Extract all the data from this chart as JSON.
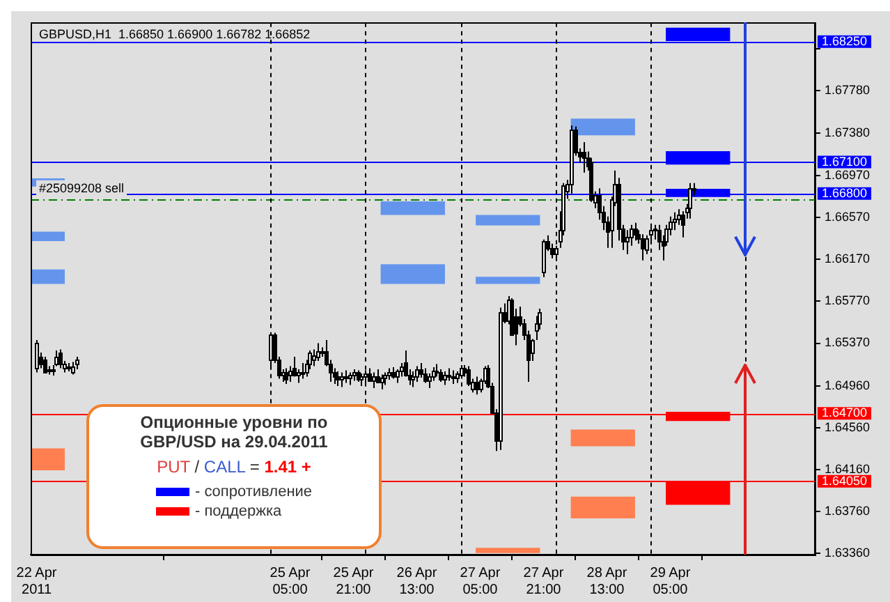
{
  "chart_data": {
    "type": "candlestick",
    "title": "Опционные уровни по GBP/USD на 29.04.2011",
    "subtitle": "GBPUSD,H1  1.66850 1.66900 1.66782 1.66852",
    "annotations": [
      "PUT / CALL = 1.41 +"
    ],
    "legend": "bottom left",
    "x": [
      "2011-04-22T13:00",
      "2011-04-22T14:00",
      "2011-04-22T15:00",
      "2011-04-22T16:00",
      "2011-04-22T17:00",
      "2011-04-22T18:00",
      "2011-04-22T19:00",
      "2011-04-22T20:00",
      "2011-04-22T21:00",
      "2011-04-22T22:00",
      "2011-04-22T23:00",
      "2011-04-25T00:00",
      "2011-04-25T01:00",
      "2011-04-25T02:00",
      "2011-04-25T03:00",
      "2011-04-25T04:00",
      "2011-04-25T05:00",
      "2011-04-25T06:00",
      "2011-04-25T07:00",
      "2011-04-25T08:00",
      "2011-04-25T09:00",
      "2011-04-25T10:00",
      "2011-04-25T11:00",
      "2011-04-25T12:00",
      "2011-04-25T13:00",
      "2011-04-25T14:00",
      "2011-04-25T15:00",
      "2011-04-25T16:00",
      "2011-04-25T17:00",
      "2011-04-25T18:00",
      "2011-04-25T19:00",
      "2011-04-25T20:00",
      "2011-04-25T21:00",
      "2011-04-25T22:00",
      "2011-04-25T23:00",
      "2011-04-26T00:00",
      "2011-04-26T01:00",
      "2011-04-26T02:00",
      "2011-04-26T03:00",
      "2011-04-26T04:00",
      "2011-04-26T05:00",
      "2011-04-26T06:00",
      "2011-04-26T07:00",
      "2011-04-26T08:00",
      "2011-04-26T09:00",
      "2011-04-26T10:00",
      "2011-04-26T11:00",
      "2011-04-26T12:00",
      "2011-04-26T13:00",
      "2011-04-26T14:00",
      "2011-04-26T15:00",
      "2011-04-26T16:00",
      "2011-04-26T17:00",
      "2011-04-26T18:00",
      "2011-04-26T19:00",
      "2011-04-26T20:00",
      "2011-04-26T21:00",
      "2011-04-26T22:00",
      "2011-04-26T23:00",
      "2011-04-27T00:00",
      "2011-04-27T01:00",
      "2011-04-27T02:00",
      "2011-04-27T03:00",
      "2011-04-27T04:00",
      "2011-04-27T05:00",
      "2011-04-27T06:00",
      "2011-04-27T07:00",
      "2011-04-27T08:00",
      "2011-04-27T09:00",
      "2011-04-27T10:00",
      "2011-04-27T11:00",
      "2011-04-27T12:00",
      "2011-04-27T13:00",
      "2011-04-27T14:00",
      "2011-04-27T15:00",
      "2011-04-27T16:00",
      "2011-04-27T17:00",
      "2011-04-27T18:00",
      "2011-04-27T19:00",
      "2011-04-27T20:00",
      "2011-04-27T21:00",
      "2011-04-27T22:00",
      "2011-04-27T23:00",
      "2011-04-28T00:00",
      "2011-04-28T01:00",
      "2011-04-28T02:00",
      "2011-04-28T03:00",
      "2011-04-28T04:00",
      "2011-04-28T05:00",
      "2011-04-28T06:00",
      "2011-04-28T07:00",
      "2011-04-28T08:00",
      "2011-04-28T09:00",
      "2011-04-28T10:00",
      "2011-04-28T11:00",
      "2011-04-28T12:00",
      "2011-04-28T13:00",
      "2011-04-28T14:00",
      "2011-04-28T15:00",
      "2011-04-28T16:00",
      "2011-04-28T17:00",
      "2011-04-28T18:00",
      "2011-04-28T19:00",
      "2011-04-28T20:00",
      "2011-04-28T21:00",
      "2011-04-28T22:00",
      "2011-04-28T23:00",
      "2011-04-29T00:00",
      "2011-04-29T01:00",
      "2011-04-29T02:00",
      "2011-04-29T03:00",
      "2011-04-29T04:00",
      "2011-04-29T05:00",
      "2011-04-29T06:00",
      "2011-04-29T07:00",
      "2011-04-29T08:00",
      "2011-04-29T09:00",
      "2011-04-29T10:00",
      "2011-04-29T11:00"
    ],
    "ohlc": [
      [
        1.6513,
        1.654,
        1.6509,
        1.6537
      ],
      [
        1.6524,
        1.6528,
        1.6513,
        1.6518
      ],
      [
        1.6521,
        1.6524,
        1.6509,
        1.6509
      ],
      [
        1.6512,
        1.6515,
        1.6507,
        1.6511
      ],
      [
        1.6511,
        1.6516,
        1.6506,
        1.6512
      ],
      [
        1.6518,
        1.653,
        1.6515,
        1.6524
      ],
      [
        1.6528,
        1.6531,
        1.6513,
        1.6518
      ],
      [
        1.6513,
        1.652,
        1.6509,
        1.6517
      ],
      [
        1.6515,
        1.6518,
        1.651,
        1.6514
      ],
      [
        1.651,
        1.6519,
        1.6507,
        1.6515
      ],
      [
        1.6518,
        1.6524,
        1.6512,
        1.6521
      ],
      [
        1.6521,
        1.6547,
        1.6515,
        1.6545
      ],
      [
        1.6545,
        1.6547,
        1.6518,
        1.6521
      ],
      [
        1.6521,
        1.6524,
        1.6503,
        1.6507
      ],
      [
        1.6507,
        1.6512,
        1.65,
        1.6509
      ],
      [
        1.6509,
        1.6513,
        1.6498,
        1.6503
      ],
      [
        1.6507,
        1.6515,
        1.65,
        1.6511
      ],
      [
        1.6513,
        1.6524,
        1.6505,
        1.6507
      ],
      [
        1.6507,
        1.6512,
        1.6499,
        1.6509
      ],
      [
        1.6509,
        1.6518,
        1.6503,
        1.651
      ],
      [
        1.651,
        1.6521,
        1.6505,
        1.6518
      ],
      [
        1.6518,
        1.653,
        1.6512,
        1.6528
      ],
      [
        1.6521,
        1.6531,
        1.6515,
        1.6526
      ],
      [
        1.6524,
        1.6537,
        1.652,
        1.653
      ],
      [
        1.653,
        1.6533,
        1.6524,
        1.6528
      ],
      [
        1.653,
        1.654,
        1.6515,
        1.6518
      ],
      [
        1.6518,
        1.6521,
        1.65,
        1.6509
      ],
      [
        1.6509,
        1.6513,
        1.6498,
        1.6505
      ],
      [
        1.6505,
        1.651,
        1.6496,
        1.6503
      ],
      [
        1.6503,
        1.6509,
        1.6495,
        1.6506
      ],
      [
        1.6506,
        1.6511,
        1.6499,
        1.6504
      ],
      [
        1.6504,
        1.6509,
        1.6497,
        1.6507
      ],
      [
        1.6507,
        1.6512,
        1.6501,
        1.6509
      ],
      [
        1.6509,
        1.6511,
        1.65,
        1.6503
      ],
      [
        1.6503,
        1.6508,
        1.6496,
        1.6505
      ],
      [
        1.6505,
        1.6511,
        1.6498,
        1.6508
      ],
      [
        1.6508,
        1.6513,
        1.65,
        1.6502
      ],
      [
        1.6502,
        1.6509,
        1.6494,
        1.6506
      ],
      [
        1.6506,
        1.6512,
        1.6499,
        1.65
      ],
      [
        1.65,
        1.6507,
        1.6493,
        1.6504
      ],
      [
        1.6504,
        1.6509,
        1.6497,
        1.6507
      ],
      [
        1.6507,
        1.6513,
        1.6502,
        1.651
      ],
      [
        1.651,
        1.6514,
        1.6503,
        1.6505
      ],
      [
        1.6505,
        1.6512,
        1.6499,
        1.6511
      ],
      [
        1.6511,
        1.6518,
        1.6505,
        1.6515
      ],
      [
        1.6519,
        1.653,
        1.6505,
        1.6507
      ],
      [
        1.6507,
        1.6512,
        1.6497,
        1.6503
      ],
      [
        1.6503,
        1.651,
        1.6495,
        1.6506
      ],
      [
        1.6506,
        1.6515,
        1.65,
        1.6512
      ],
      [
        1.6512,
        1.6518,
        1.6504,
        1.6508
      ],
      [
        1.6508,
        1.6513,
        1.6499,
        1.6502
      ],
      [
        1.6502,
        1.6508,
        1.6494,
        1.6505
      ],
      [
        1.6505,
        1.6514,
        1.6501,
        1.6511
      ],
      [
        1.6511,
        1.6517,
        1.6505,
        1.6509
      ],
      [
        1.6509,
        1.6512,
        1.65,
        1.6503
      ],
      [
        1.6503,
        1.651,
        1.6497,
        1.6507
      ],
      [
        1.6507,
        1.6513,
        1.6501,
        1.6506
      ],
      [
        1.6506,
        1.6511,
        1.6498,
        1.6504
      ],
      [
        1.6504,
        1.651,
        1.6499,
        1.6508
      ],
      [
        1.6507,
        1.6516,
        1.6503,
        1.6513
      ],
      [
        1.6513,
        1.6516,
        1.6505,
        1.6509
      ],
      [
        1.6512,
        1.6515,
        1.6496,
        1.6499
      ],
      [
        1.6494,
        1.6503,
        1.649,
        1.65
      ],
      [
        1.65,
        1.6505,
        1.6488,
        1.6494
      ],
      [
        1.6494,
        1.6503,
        1.649,
        1.6501
      ],
      [
        1.6501,
        1.6515,
        1.6498,
        1.6513
      ],
      [
        1.6513,
        1.6516,
        1.6494,
        1.6496
      ],
      [
        1.6496,
        1.6499,
        1.647,
        1.6471
      ],
      [
        1.6471,
        1.6474,
        1.6434,
        1.6444
      ],
      [
        1.6444,
        1.6571,
        1.6435,
        1.6566
      ],
      [
        1.6566,
        1.6575,
        1.6556,
        1.6559
      ],
      [
        1.6559,
        1.6582,
        1.6555,
        1.6578
      ],
      [
        1.6578,
        1.658,
        1.6545,
        1.6545
      ],
      [
        1.6563,
        1.657,
        1.6535,
        1.6547
      ],
      [
        1.6563,
        1.6572,
        1.6553,
        1.6556
      ],
      [
        1.6556,
        1.656,
        1.654,
        1.6545
      ],
      [
        1.6545,
        1.6549,
        1.65,
        1.6521
      ],
      [
        1.6528,
        1.6541,
        1.652,
        1.654
      ],
      [
        1.6549,
        1.6563,
        1.654,
        1.6556
      ],
      [
        1.6556,
        1.657,
        1.655,
        1.6566
      ],
      [
        1.6605,
        1.6636,
        1.66,
        1.6635
      ],
      [
        1.6635,
        1.664,
        1.6625,
        1.6628
      ],
      [
        1.6628,
        1.6632,
        1.6618,
        1.6622
      ],
      [
        1.6622,
        1.663,
        1.6618,
        1.6628
      ],
      [
        1.6635,
        1.6663,
        1.6628,
        1.6645
      ],
      [
        1.6645,
        1.669,
        1.664,
        1.6688
      ],
      [
        1.6682,
        1.6693,
        1.6675,
        1.6689
      ],
      [
        1.6689,
        1.6745,
        1.668,
        1.6741
      ],
      [
        1.6741,
        1.6744,
        1.6716,
        1.672
      ],
      [
        1.672,
        1.6723,
        1.671,
        1.6716
      ],
      [
        1.672,
        1.6729,
        1.67,
        1.6714
      ],
      [
        1.6714,
        1.672,
        1.6702,
        1.6707
      ],
      [
        1.671,
        1.6714,
        1.6672,
        1.6675
      ],
      [
        1.6672,
        1.6682,
        1.6666,
        1.6679
      ],
      [
        1.6679,
        1.6685,
        1.6655,
        1.6662
      ],
      [
        1.6662,
        1.6668,
        1.6645,
        1.6653
      ],
      [
        1.6653,
        1.6658,
        1.6628,
        1.6644
      ],
      [
        1.6645,
        1.6677,
        1.6628,
        1.6675
      ],
      [
        1.6672,
        1.6702,
        1.6668,
        1.6689
      ],
      [
        1.6689,
        1.6695,
        1.6635,
        1.6647
      ],
      [
        1.6647,
        1.665,
        1.6626,
        1.6635
      ],
      [
        1.6635,
        1.6645,
        1.6622,
        1.6638
      ],
      [
        1.6638,
        1.665,
        1.663,
        1.6647
      ],
      [
        1.6647,
        1.6652,
        1.6635,
        1.6641
      ],
      [
        1.6641,
        1.6645,
        1.6632,
        1.6637
      ],
      [
        1.6637,
        1.6641,
        1.6616,
        1.6628
      ],
      [
        1.6626,
        1.664,
        1.6622,
        1.6637
      ],
      [
        1.6641,
        1.665,
        1.6632,
        1.6645
      ],
      [
        1.6645,
        1.665,
        1.6636,
        1.6647
      ],
      [
        1.6645,
        1.665,
        1.6626,
        1.6635
      ],
      [
        1.6635,
        1.664,
        1.6616,
        1.6631
      ],
      [
        1.6635,
        1.665,
        1.663,
        1.6647
      ],
      [
        1.6647,
        1.6658,
        1.664,
        1.6653
      ],
      [
        1.6653,
        1.6662,
        1.6645,
        1.6656
      ],
      [
        1.6656,
        1.6665,
        1.665,
        1.666
      ],
      [
        1.666,
        1.6663,
        1.6638,
        1.6651
      ],
      [
        1.6662,
        1.667,
        1.6656,
        1.6666
      ],
      [
        1.6666,
        1.669,
        1.6656,
        1.6685
      ],
      [
        1.6685,
        1.669,
        1.66782,
        1.66852
      ]
    ],
    "series": [
      {
        "type": "bar",
        "name": "- сопротивление",
        "color": "#0000ff",
        "x": [
          "2011-04-22T12:00",
          "2011-04-26T12:00",
          "2011-04-27T12:00",
          "2011-04-28T12:00",
          "2011-04-29T12:00"
        ],
        "base": [
          1.6687,
          1.666,
          1.665,
          1.6736,
          1.6826
        ],
        "values": [
          0.0007,
          0.0012,
          0.0009,
          0.0015,
          0.0012
        ],
        "colors": [
          "#6495ed",
          "#6495ed",
          "#6495ed",
          "#6495ed",
          "#0000ff"
        ]
      },
      {
        "type": "bar",
        "x": [
          "2011-04-22T12:00",
          "2011-04-26T12:00",
          "2011-04-27T12:00",
          "2011-04-29T12:00"
        ],
        "base": [
          1.6635,
          1.6594,
          1.6594,
          1.6708
        ],
        "values": [
          0.0008,
          0.0018,
          0.0006,
          0.0012
        ],
        "colors": [
          "#6495ed",
          "#6495ed",
          "#6495ed",
          "#0000ff"
        ]
      },
      {
        "type": "bar",
        "x": [
          "2011-04-22T12:00",
          "2011-04-29T12:00"
        ],
        "base": [
          1.6594,
          1.6677
        ],
        "values": [
          0.0013,
          0.0007
        ],
        "colors": [
          "#6495ed",
          "#0000ff"
        ]
      },
      {
        "type": "bar",
        "name": "- поддержка",
        "color": "#ff0000",
        "x": [
          "2011-04-22T12:00",
          "2011-04-27T12:00",
          "2011-04-28T12:00",
          "2011-04-29T12:00"
        ],
        "base": [
          1.6416,
          1.6337,
          1.6439,
          1.6463
        ],
        "values": [
          0.002,
          0.0004,
          0.0015,
          0.0008
        ],
        "colors": [
          "#ff7f50",
          "#ff7f50",
          "#ff7f50",
          "#ff0000"
        ]
      },
      {
        "type": "bar",
        "x": [
          "2011-04-28T12:00",
          "2011-04-29T12:00"
        ],
        "base": [
          1.637,
          1.6383
        ],
        "values": [
          0.002,
          0.0022
        ],
        "colors": [
          "#ff7f50",
          "#ff0000"
        ]
      }
    ],
    "xlim": [
      "2011-04-22T11:30",
      "2011-04-30T17:30"
    ],
    "xticks": [
      {
        "value": "2011-04-22T13:00",
        "label": "22 Apr 2011"
      },
      {
        "value": "2011-04-25T05:00",
        "label": "25 Apr 05:00"
      },
      {
        "value": "2011-04-25T21:00",
        "label": "25 Apr 21:00"
      },
      {
        "value": "2011-04-26T13:00",
        "label": "26 Apr 13:00"
      },
      {
        "value": "2011-04-27T05:00",
        "label": "27 Apr 05:00"
      },
      {
        "value": "2011-04-27T21:00",
        "label": "27 Apr 21:00"
      },
      {
        "value": "2011-04-28T13:00",
        "label": "28 Apr 13:00"
      },
      {
        "value": "2011-04-29T05:00",
        "label": "29 Apr 05:00"
      }
    ],
    "ylim": [
      1.6335,
      1.6843
    ],
    "yticks": [
      {
        "value": 1.6336,
        "label": "1.63360"
      },
      {
        "value": 1.6376,
        "label": "1.63760"
      },
      {
        "value": 1.6416,
        "label": "1.64160"
      },
      {
        "value": 1.6456,
        "label": "1.64560"
      },
      {
        "value": 1.6496,
        "label": "1.64960"
      },
      {
        "value": 1.6537,
        "label": "1.65370"
      },
      {
        "value": 1.6577,
        "label": "1.65770"
      },
      {
        "value": 1.6617,
        "label": "1.66170"
      },
      {
        "value": 1.6657,
        "label": "1.66570"
      },
      {
        "value": 1.6697,
        "label": "1.66970"
      },
      {
        "value": 1.6738,
        "label": "1.67380"
      },
      {
        "value": 1.6778,
        "label": "1.67780"
      },
      {
        "value": 1.6818,
        "label": null
      }
    ],
    "ref_lines": [
      {
        "axis": "y",
        "value": 1.6825,
        "label": "1.68250",
        "color": "#0000ff"
      },
      {
        "axis": "y",
        "value": 1.671,
        "label": "1.67100",
        "color": "#0000ff"
      },
      {
        "axis": "y",
        "value": 1.668,
        "label": "1.66800",
        "color": "#0000ff"
      },
      {
        "axis": "y",
        "value": 1.647,
        "label": "1.64700",
        "color": "#ff0000"
      },
      {
        "axis": "y",
        "value": 1.6405,
        "label": "1.64050",
        "color": "#ff0000"
      },
      {
        "axis": "y",
        "value": 1.6674,
        "label": "#25099208 sell",
        "color": "#008000",
        "line_style": "dashed"
      },
      {
        "axis": "x",
        "value": "2011-04-25T00:00",
        "color": "#000000",
        "line_style": "dashed"
      },
      {
        "axis": "x",
        "value": "2011-04-26T00:00",
        "color": "#000000",
        "line_style": "dashed"
      },
      {
        "axis": "x",
        "value": "2011-04-27T00:00",
        "color": "#000000",
        "line_style": "dashed"
      },
      {
        "axis": "x",
        "value": "2011-04-28T00:00",
        "color": "#000000",
        "line_style": "dashed"
      },
      {
        "axis": "x",
        "value": "2011-04-29T00:00",
        "color": "#000000",
        "line_style": "dashed"
      },
      {
        "axis": "x",
        "value": "2011-04-30T00:00",
        "color": "#000000",
        "line_style": "dashed"
      }
    ]
  }
}
